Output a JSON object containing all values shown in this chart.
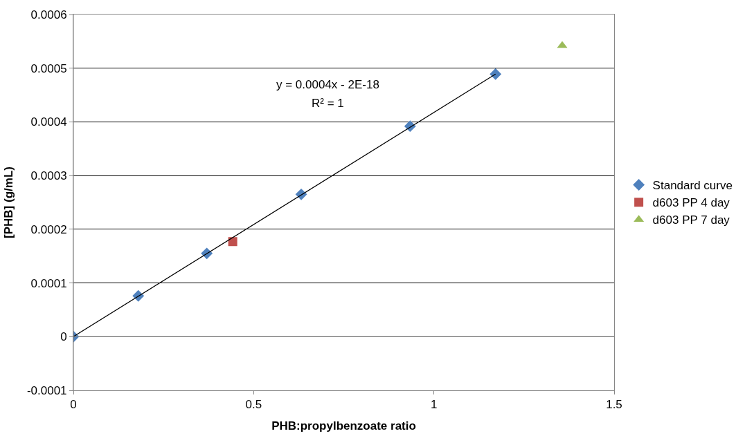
{
  "chart_data": {
    "type": "scatter",
    "xlabel": "PHB:propylbenzoate ratio",
    "ylabel": "[PHB] (g/mL)",
    "xlim": [
      0,
      1.5
    ],
    "xticks": [
      0,
      0.5,
      1,
      1.5
    ],
    "ylim": [
      -0.0001,
      0.0006
    ],
    "yticks": [
      -0.0001,
      0,
      0.0001,
      0.0002,
      0.0003,
      0.0004,
      0.0005,
      0.0006
    ],
    "grid": "y",
    "legend": "right",
    "series": [
      {
        "name": "Standard curve",
        "color": "#4f81bd",
        "marker": "diamond",
        "x": [
          0,
          0.18,
          0.37,
          0.632,
          0.934,
          1.171
        ],
        "values": [
          0,
          7.6e-05,
          0.000155,
          0.000265,
          0.000392,
          0.000489
        ]
      },
      {
        "name": "d603 PP 4 day",
        "color": "#c0504d",
        "marker": "square",
        "x": [
          0.442
        ],
        "values": [
          0.000177
        ]
      },
      {
        "name": "d603 PP 7 day",
        "color": "#9bbb59",
        "marker": "triangle",
        "x": [
          1.356
        ],
        "values": [
          0.000542
        ]
      },
      {
        "type": "line",
        "color": "#000000",
        "marker": "none",
        "line_style": "solid",
        "x": [
          0,
          1.171
        ],
        "values": [
          0,
          0.000489
        ]
      }
    ],
    "annotations": [
      "y = 0.0004x - 2E-18",
      "R² = 1"
    ]
  }
}
